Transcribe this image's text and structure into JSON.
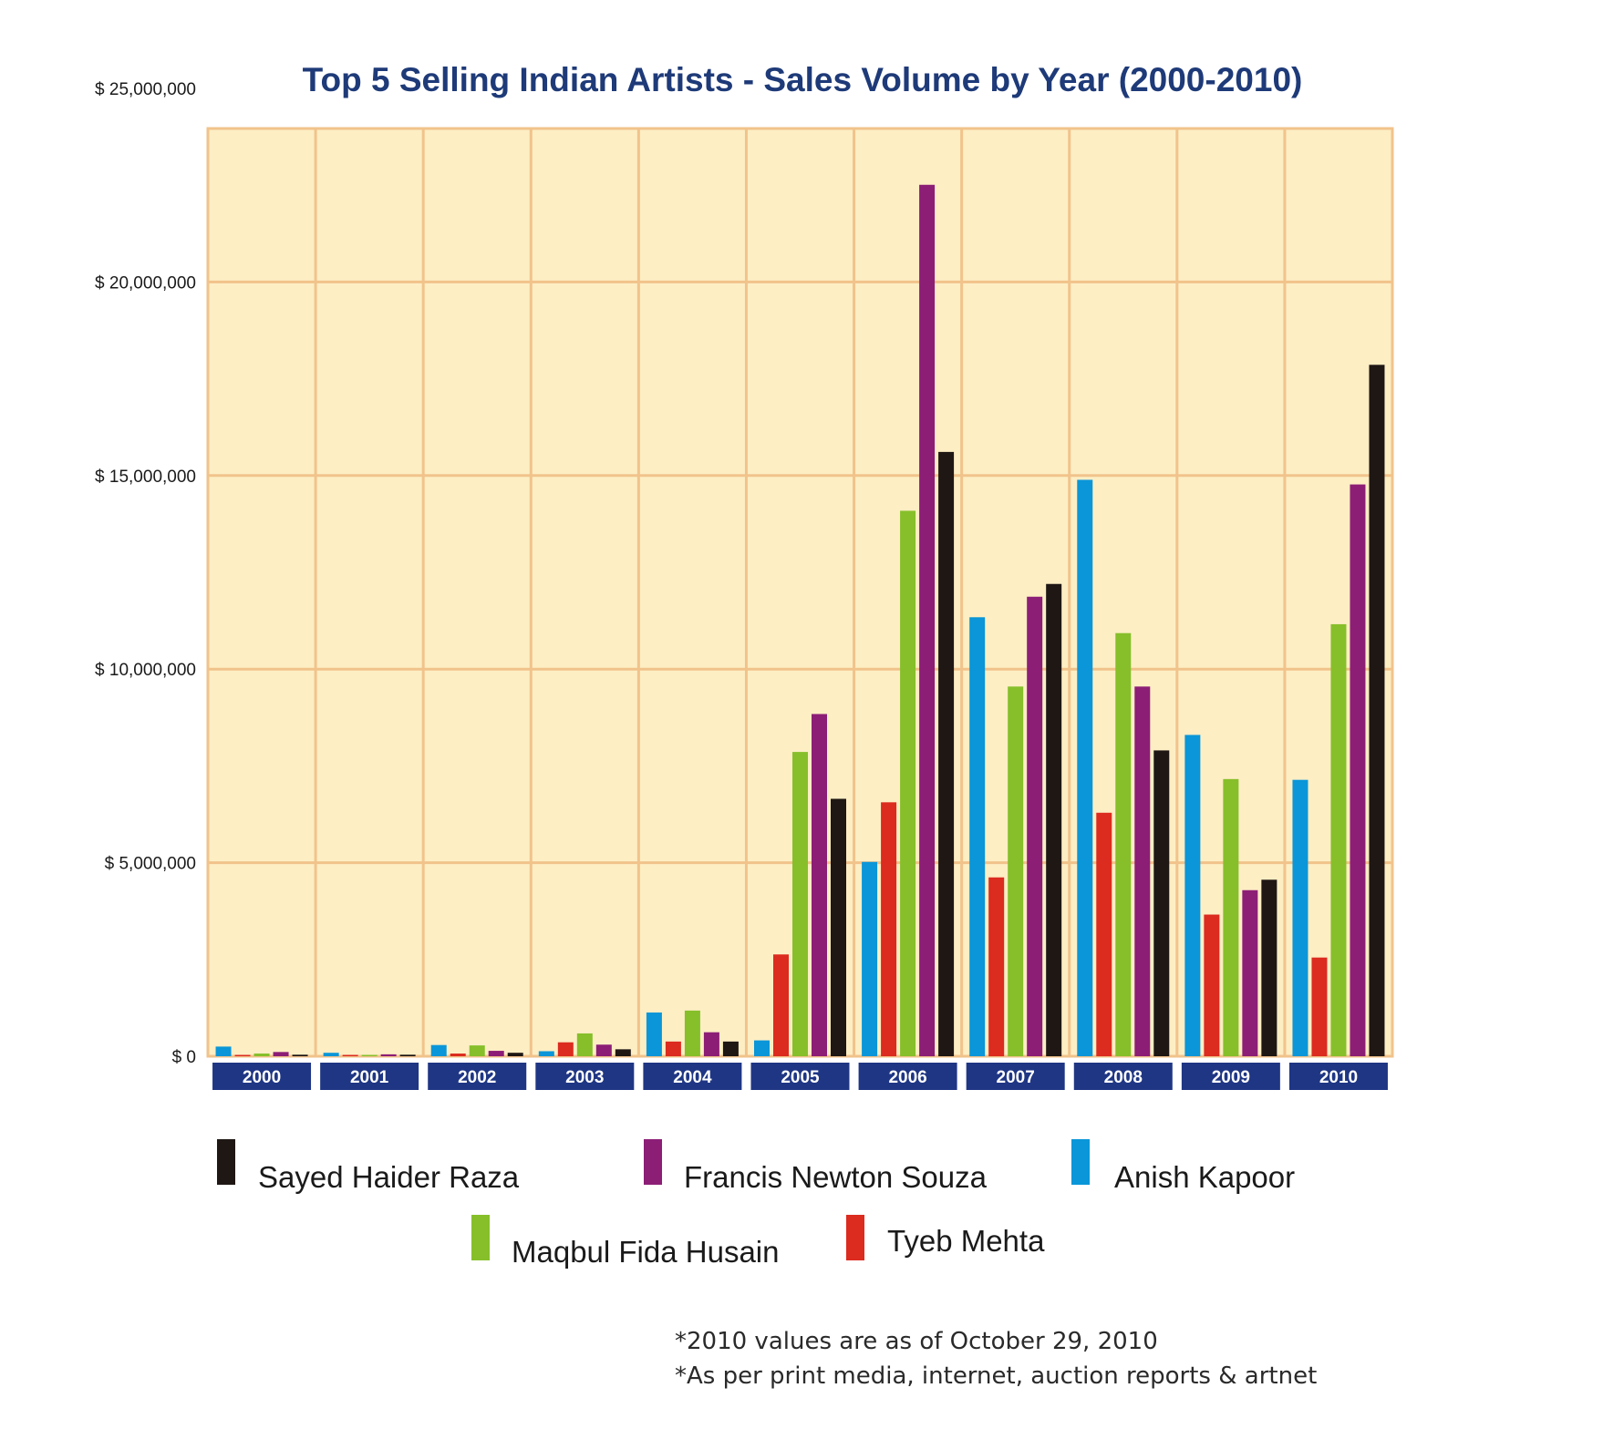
{
  "chart_data": {
    "type": "bar",
    "title": "Top 5 Selling Indian Artists - Sales Volume by Year (2000-2010)",
    "xlabel": "",
    "ylabel": "",
    "ylim": [
      0,
      25000000
    ],
    "y_ticks": [
      0,
      5000000,
      10000000,
      15000000,
      20000000,
      25000000
    ],
    "y_tick_labels": [
      "$ 0",
      "$ 5,000,000",
      "$ 10,000,000",
      "$ 15,000,000",
      "$ 20,000,000",
      "$ 25,000,000"
    ],
    "grid": true,
    "legend_position": "bottom",
    "categories": [
      "2000",
      "2001",
      "2002",
      "2003",
      "2004",
      "2005",
      "2006",
      "2007",
      "2008",
      "2009",
      "2010"
    ],
    "series": [
      {
        "name": "Anish Kapoor",
        "color": "#0a96d8",
        "values": [
          250000,
          90000,
          290000,
          130000,
          1130000,
          410000,
          5020000,
          11340000,
          14890000,
          8300000,
          7140000
        ]
      },
      {
        "name": "Tyeb Mehta",
        "color": "#dc2b1f",
        "values": [
          20000,
          20000,
          70000,
          360000,
          380000,
          2630000,
          6560000,
          4620000,
          6290000,
          3660000,
          2550000
        ]
      },
      {
        "name": "Maqbul Fida Husain",
        "color": "#86bf2a",
        "values": [
          70000,
          20000,
          280000,
          590000,
          1180000,
          7860000,
          14090000,
          9550000,
          10930000,
          7160000,
          11160000
        ]
      },
      {
        "name": "Francis Newton Souza",
        "color": "#8c1e76",
        "values": [
          110000,
          50000,
          140000,
          300000,
          620000,
          8840000,
          22510000,
          11870000,
          9550000,
          4290000,
          14770000
        ]
      },
      {
        "name": "Sayed Haider Raza",
        "color": "#1e1714",
        "values": [
          40000,
          40000,
          90000,
          180000,
          380000,
          6650000,
          15610000,
          12200000,
          7900000,
          4560000,
          17860000
        ]
      }
    ],
    "legend_order": [
      "Sayed Haider Raza",
      "Francis Newton Souza",
      "Anish Kapoor",
      "Maqbul Fida Husain",
      "Tyeb Mehta"
    ]
  },
  "notes": [
    "*2010 values are as of October 29, 2010",
    "*As per print media, internet, auction reports & artnet"
  ],
  "colors": {
    "plot_background": "#fdeec4",
    "grid_line": "#f1c38b",
    "year_label_background": "#1f3684",
    "title": "#1e3a78"
  }
}
